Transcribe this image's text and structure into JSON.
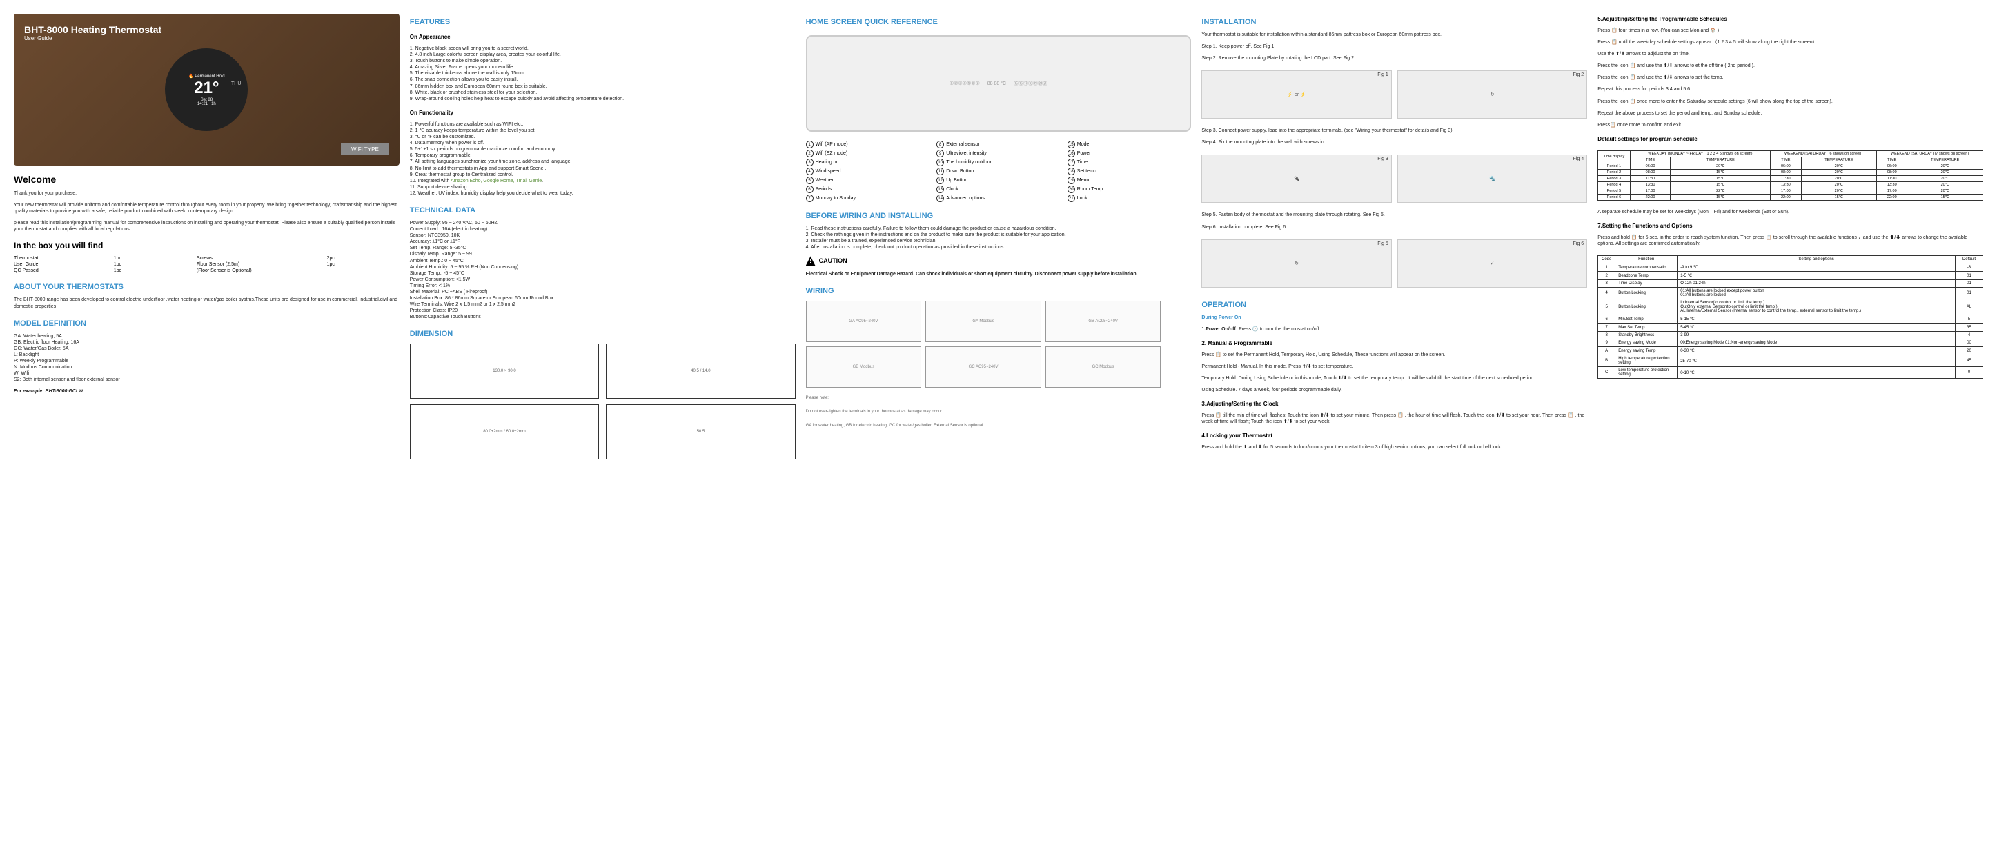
{
  "hero": {
    "title": "BHT-8000 Heating Thermostat",
    "sub": "User Guide",
    "wifi": "WIFI TYPE",
    "temp": "21°",
    "day": "THU",
    "set": "Set",
    "setval": "88",
    "time": "14:21",
    "hum": "1h"
  },
  "welcome": {
    "h": "Welcome",
    "p1": "Thank you for your purchase.",
    "p2": "Your new thermostat will provide uniform and comfortable temperature control throughout every room in your property. We bring together technology, craftsmanship and the highest quality materials to provide you with a safe, reliable product combined with sleek, contemporary design.",
    "p3": "please read this installation/programming manual for comprehensive instructions on installing and operating your thermostat. Please also ensure a suitably qualified person installs your thermostat and complies with all local regulations."
  },
  "inbox": {
    "h": "In the box you will find",
    "r": [
      [
        "Thermostat",
        "1pc",
        "Screws",
        "2pc"
      ],
      [
        "User Guide",
        "1pc",
        "Floor Sensor (2.5m)",
        "1pc"
      ],
      [
        "QC Passed",
        "1pc",
        "(Floor Sensor is Optional)",
        ""
      ]
    ]
  },
  "about": {
    "h": "ABOUT YOUR THERMOSTATS",
    "p": "The BHT-8000 range has been developed to control electric underfloor ,water heating or water/gas boiler systms.These units are designed for use in commercial, industrial,civil and domestic properties"
  },
  "model": {
    "h": "MODEL DEFINITION",
    "items": [
      "GA: Water heating, 5A",
      "GB: Electric floor Heating, 16A",
      "GC: Water/Gas Boiler, 5A",
      "L: Backlight",
      "P: Weekly Programmable",
      "N: Modbus Communication",
      "W: Wifi",
      "S2: Both internal sensor and floor external sensor"
    ],
    "ex": "For example: BHT-8000 GCLW"
  },
  "features": {
    "h": "FEATURES",
    "sub1": "On Appearance",
    "a": [
      "1. Negative black sceen will bring you to a secret world.",
      "2. 4.8 inch Large colorful screen display area, creates your colorful life.",
      "3. Touch buttons to make simple operation.",
      "4. Amazing Silver Frame opens your modern life.",
      "5. The visiable thickenss above the wall is only 15mm.",
      "6. The snap connection allows you to easily install.",
      "7. 86mm hidden box and European 60mm round box is suitable.",
      "8. White, black or brushed stainless steel for your selection.",
      "9. Wrap-around cooling holes help heat to escape quickly and avoid affecting temperature detection."
    ],
    "sub2": "On Functionality",
    "f": [
      "1. Powerful functions are available such as WIFI etc,.",
      "2. 1 ℃ acuracy keeps temperature within the level you set.",
      "3. ℃ or ℉ can be customized.",
      "4. Data memory when power is off.",
      "5. 5+1+1  six periods programmable maximize comfort and economy.",
      "6. Temporary programmable.",
      "7. All setting languages sunchronize your time zone, address and language.",
      "8. No limit to add thermostats in App and support Smart Scene..",
      "9. Creat thermostat group to Centralized control.",
      "10. Integrated with Amazon Echo, Google Home, Tmall Genie.",
      "11. Support device sharing.",
      "12. Weather, UV index, humidity display help you decide what to wear today."
    ]
  },
  "tech": {
    "h": "TECHNICAL DATA",
    "items": [
      "Power Supply:  95 ~ 240 VAC, 50 ~ 60HZ",
      "Current Load :   16A (electric heating)",
      "Sensor: NTC3950,   10K",
      "Accuracy: ±1°C or ±1°F",
      "Set Temp. Range: 5 -35°C",
      "Dispaly Temp. Range: 5 ~ 99",
      "Ambient Temp.: 0 ~ 45°C",
      "Ambient Humidity:  5 ~ 95 % RH (Non Condensing)",
      "Storage Temp.: -5 ~ 45°C",
      "Power Consumption: <1.5W",
      "Timing Error:  < 1%",
      "Shell Material:  PC +ABS ( Fireproof)",
      "Installation Box: 86 * 86mm Square or European 60mm Round Box",
      "Wire Terminals:  Wire 2 x 1.5 mm2 or 1 x 2.5 mm2",
      "Protection Class: IP20",
      "Buttons:Capactive Touch Buttons"
    ]
  },
  "dimension": {
    "h": "DIMENSION"
  },
  "home": {
    "h": "HOME SCREEN QUICK REFERENCE",
    "legend": [
      [
        "1",
        "Wifi  (AP mode)"
      ],
      [
        "2",
        "Wifi  (EZ mode)"
      ],
      [
        "3",
        "Heating on"
      ],
      [
        "4",
        "Wind speed"
      ],
      [
        "5",
        "Weather"
      ],
      [
        "6",
        "Periods"
      ],
      [
        "7",
        "Monday to Sunday"
      ],
      [
        "8",
        "External sensor"
      ],
      [
        "9",
        "Ultraviolet intensity"
      ],
      [
        "10",
        "The humidity outdoor"
      ],
      [
        "11",
        "Down Button"
      ],
      [
        "12",
        "Up Button"
      ],
      [
        "13",
        "Clock"
      ],
      [
        "14",
        "Advanced options"
      ],
      [
        "15",
        "Mode"
      ],
      [
        "16",
        "Power"
      ],
      [
        "17",
        "Time"
      ],
      [
        "18",
        "Set temp."
      ],
      [
        "19",
        "Menu"
      ],
      [
        "20",
        "Room Temp."
      ],
      [
        "21",
        "Lock"
      ]
    ]
  },
  "before": {
    "h": "BEFORE WIRING AND INSTALLING",
    "items": [
      "1. Read these instructions carefully. Failure to follow them could damage the product or cause a hazardous condition.",
      "2. Check the rathings given in the instructions and on the product to make sure the product is suitable for your application.",
      "3. Installer must be a trained, experienced service technician.",
      "4. After installation is complete, check out product operation as provided in these instructions."
    ],
    "caution": "CAUTION",
    "warn": "Electrical Shock or Equipment Damage Hazard. Can shock individuals or short equipment circuitry. Disconnect power supply before installation."
  },
  "wiring": {
    "h": "WIRING",
    "note1": "Please note:",
    "note2": "Do not over-tighten the terminals in your thermostat as damage may occur.",
    "note3": "GA for water heating, GB for electric heating, GC for water/gas boiler. External Sensor is optional."
  },
  "install": {
    "h": "INSTALLATION",
    "p1": "Your thermostat is suitable for installation within a standard 86mm pattress box or European 60mm pattress box.",
    "s1": "Step 1. Keep power off. See Fig 1.",
    "s2": "Step 2. Remove the mounting Plate by rotating the LCD part. See Fig 2.",
    "s3": "Step 3. Connect power supply, load into the appropriate terminals. (see \"Wiring your thermostat\" for details and Fig 3).",
    "s4": "Step 4. Fix the mounting plate into the wall with screws in",
    "s5": "Step 5. Fasten body of thermostat and the mounting plate through rotating. See Fig 5.",
    "s6": "Step 6. Installation complete. See Fig 6."
  },
  "op": {
    "h": "OPERATION",
    "sub": "During Power On",
    "p1h": "1.Power On/off:",
    "p1": " Press 🕐 to turn the thermostat on/off.",
    "p2h": "2. Manual & Programmable",
    "p2": "Press 📋 to set the Permanent Hold,  Temporary Hold,  Using Schedule, These functions will appear on the screen.",
    "p2b": "Permanent Hold - Manual. In this mode, Press ⬆/⬇ to set temperature.",
    "p2c": "Temporary Hold. During Using Schedule or in this mode, Touch ⬆/⬇ to set the temporary temp.. It will be  valid till the start time of the next scheduled period.",
    "p2d": "Using Schedule. 7 days a week, four periods programmable daily.",
    "p3h": "3.Adjusting/Setting the Clock",
    "p3": "Press  📋 till the min of time will flashes; Touch the icon  ⬆/⬇ to set your minute. Then press  📋 , the hour of time will flash. Touch the icon  ⬆/⬇ to set your hour. Then press  📋 , the week of time will flash; Touch the icon   ⬆/⬇ to  set your week.",
    "p4h": "4.Locking your Thermostat",
    "p4": "Press and hold the ⬆ and ⬇ for 5 seconds to lock/unlock your thermostat In item 3 of high senior options, you can select full lock or half lock."
  },
  "adj": {
    "h": "5.Adjusting/Setting the Programmable Schedules",
    "p1": "Press 📋 four times in a row. (You can see Mon and  🏠 )",
    "p2": "Press 📋 until the weekday schedule settings appear （1 2 3 4 5 will show along the right the screen）",
    "p3": "Use the ⬆/⬇ arrows to adjdust the on time.",
    "p4": "Press the icon 📋 and use the ⬆/⬇ arrows to et the off tine ( 2nd period ).",
    "p5": "Press the icon 📋 and use the ⬆/⬇ arrows to set the temp..",
    "p6": "Repeat this process for periods 3 4 and 5 6.",
    "p7": "Press the icon 📋 once more to enter the Saturday schedule settings (6 will show along the top of the screen).",
    "p8": "Repeat the above process to set the period and temp. and Sunday schedule.",
    "p9": "Press📋 once more to confirm and exit."
  },
  "default": {
    "h": "Default settings for program schedule",
    "th": [
      "Time display",
      "WEEKDAY (MONDAY ~ FRIDAY) (1 2 3 4 5 shows on screen)",
      "WEEKEND (SATURDAY) (6  shows on screen)",
      "WEEKEND (SATURDAY) (7  shows on screen)"
    ],
    "sub": [
      "TIME",
      "TEMPERATURE",
      "TIME",
      "TEMPERATURE",
      "TIME",
      "TEMPERATURE"
    ],
    "rows": [
      [
        "Period 1",
        "06:00",
        "20℃",
        "06:00",
        "20℃",
        "06:00",
        "20℃"
      ],
      [
        "Period 2",
        "08:00",
        "15℃",
        "08:00",
        "20℃",
        "08:00",
        "20℃"
      ],
      [
        "Period 3",
        "11:30",
        "15℃",
        "11:30",
        "20℃",
        "11:30",
        "20℃"
      ],
      [
        "Period 4",
        "13:30",
        "15℃",
        "13:30",
        "20℃",
        "13:30",
        "20℃"
      ],
      [
        "Period 5",
        "17:00",
        "22℃",
        "17:00",
        "20℃",
        "17:00",
        "20℃"
      ],
      [
        "Period 6",
        "22:00",
        "15℃",
        "22:00",
        "15℃",
        "22:00",
        "15℃"
      ]
    ],
    "note": "A separate schedule may be set for weekdays (Mon – Fri) and for weekends (Sat or Sun)."
  },
  "funcopt": {
    "h": "7.Setting the Functions and Options",
    "p": "Press and hold 📋 for 5 sec. in the order to reach system function. Then press 📋 to scroll through the available functions ，and use the ⬆/⬇ arrows to change the available options. All settings are confirmed automatically."
  },
  "opts": {
    "th": [
      "Code",
      "Function",
      "Setting and options",
      "Default"
    ],
    "rows": [
      [
        "1",
        "Temperature compensatio",
        "-9 to 9 ℃",
        "-3"
      ],
      [
        "2",
        "Deadzone Temp",
        "1-5 ℃",
        "01"
      ],
      [
        "3",
        "Time Display",
        "O:12h  01:24h",
        "01"
      ],
      [
        "4",
        "Button Locking",
        "01:All buttons are locked except power button\n01:All buttons are locked",
        "01"
      ],
      [
        "5",
        "Button Locking",
        "In:Internal Sensor(to control or limit the temp.)\nOu:Only external Sensor(to control or limit the temp.)\nAL:Internal/External Sensor (Internal sensor to control the temp., external sensor to limit the temp.)",
        "AL"
      ],
      [
        "6",
        "Min.Set Temp",
        "5-15 ℃",
        "5"
      ],
      [
        "7",
        "Max.Set Temp",
        "5-45 ℃",
        "35"
      ],
      [
        "8",
        "Standby Brightness",
        "3-99",
        "4"
      ],
      [
        "9",
        "Energy saving Mode",
        "00:Energy saving Mode  01:Non-energy saving Mode",
        "00"
      ],
      [
        "A",
        "Energy saving Temp",
        "0-30 ℃",
        "20"
      ],
      [
        "B",
        "High temperature protection setting",
        "25-70 ℃",
        "45"
      ],
      [
        "C",
        "Low temperature protection setting",
        "0-10 ℃",
        "0"
      ]
    ]
  }
}
